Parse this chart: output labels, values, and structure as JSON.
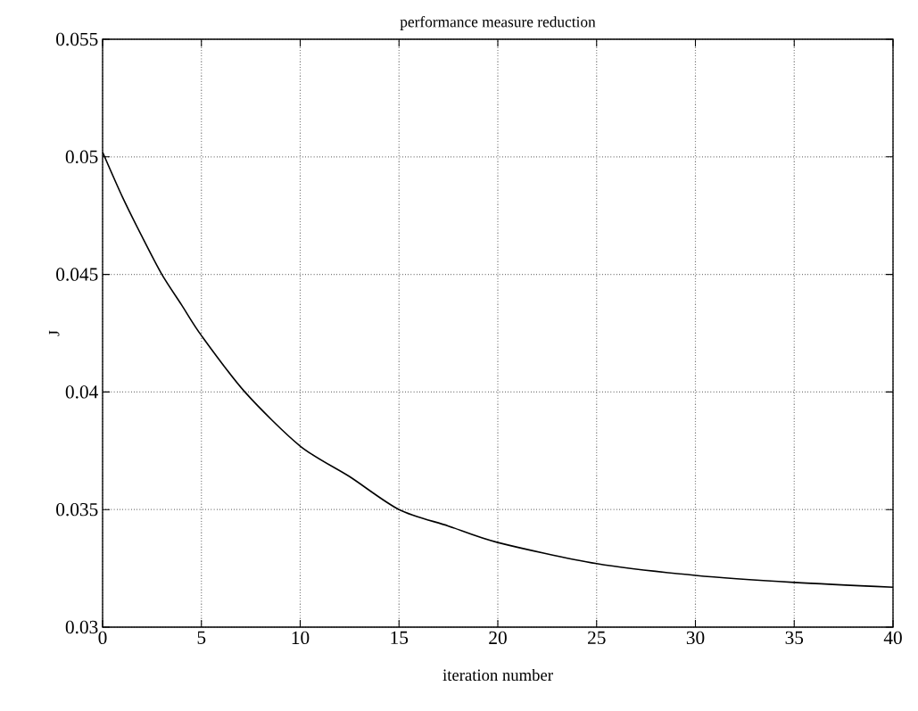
{
  "chart_data": {
    "type": "line",
    "title": "performance measure reduction",
    "xlabel": "iteration number",
    "ylabel": "J",
    "x": [
      0,
      1,
      2,
      3,
      4,
      5,
      7.2,
      10,
      12.5,
      15,
      17.5,
      20,
      25,
      30,
      35,
      40
    ],
    "series": [
      {
        "color": "#000000",
        "values": [
          0.0502,
          0.0483,
          0.0466,
          0.045,
          0.0437,
          0.0424,
          0.04,
          0.0377,
          0.0364,
          0.035,
          0.0343,
          0.0336,
          0.0327,
          0.0322,
          0.0319,
          0.0317
        ]
      }
    ],
    "xlim": [
      0,
      40
    ],
    "ylim": [
      0.03,
      0.055
    ],
    "xticks": [
      0,
      5,
      10,
      15,
      20,
      25,
      30,
      35,
      40
    ],
    "yticks": [
      0.03,
      0.035,
      0.04,
      0.045,
      0.05,
      0.055
    ],
    "grid": true,
    "marker": "none",
    "line_style": "solid"
  }
}
